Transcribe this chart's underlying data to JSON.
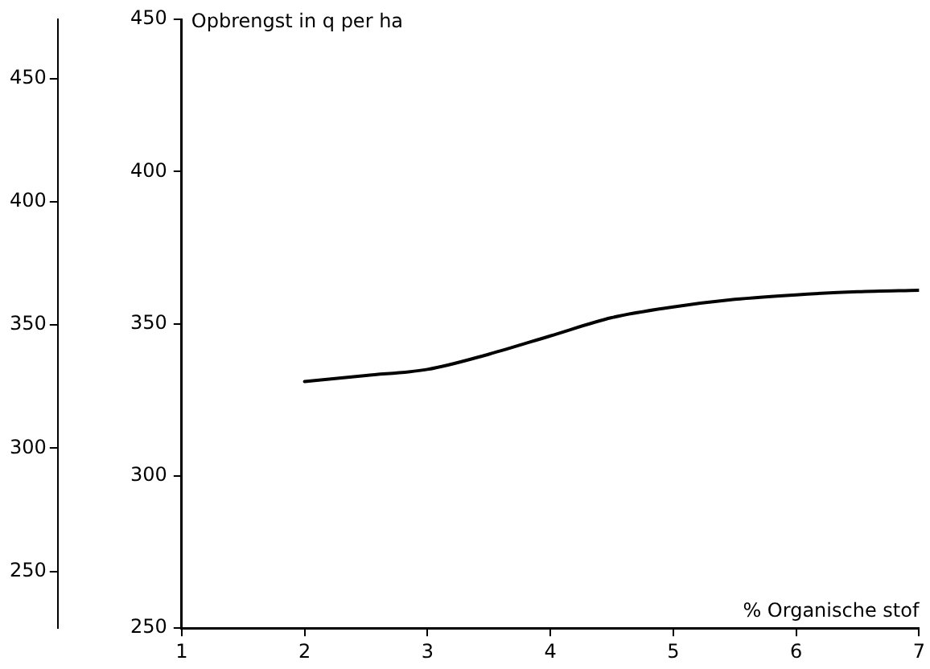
{
  "chart_data": {
    "type": "line",
    "ylabel": "Opbrengst in q per ha",
    "xlabel": "% Organische stof",
    "x": [
      2,
      2.5,
      3,
      3.5,
      4,
      4.5,
      5,
      5.5,
      6,
      6.5,
      7
    ],
    "series": [
      {
        "color": "#000000",
        "values": [
          331,
          333,
          335,
          340,
          346,
          352,
          355.5,
          358,
          359.5,
          360.5,
          361
        ]
      }
    ],
    "xlim": [
      1,
      7
    ],
    "xticks": [
      1,
      2,
      3,
      4,
      5,
      6,
      7
    ],
    "ylim": [
      250,
      450
    ],
    "yticks": [
      250,
      300,
      350,
      400,
      450
    ],
    "y2lim": [
      227,
      474
    ],
    "y2ticks": [
      250,
      300,
      350,
      400,
      450
    ],
    "grid": false,
    "legend": false,
    "marker": "none",
    "line_style": "solid"
  }
}
